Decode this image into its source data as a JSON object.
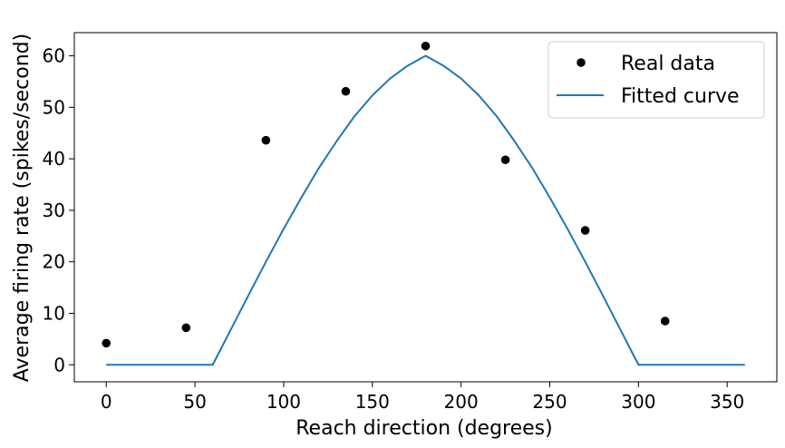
{
  "chart_data": {
    "type": "line",
    "xlabel": "Reach direction (degrees)",
    "ylabel": "Average firing rate (spikes/second)",
    "xlim": [
      -18,
      378
    ],
    "ylim": [
      -3.3,
      64.5
    ],
    "xticks": [
      0,
      50,
      100,
      150,
      200,
      250,
      300,
      350
    ],
    "yticks": [
      0,
      10,
      20,
      30,
      40,
      50,
      60
    ],
    "grid": false,
    "legend_position": "top-right",
    "colors": {
      "scatter": "#000000",
      "fit": "#1f77b4"
    },
    "series": [
      {
        "name": "Real data",
        "type": "scatter",
        "x": [
          0,
          45,
          90,
          135,
          180,
          225,
          270,
          315
        ],
        "y": [
          4.2,
          7.2,
          43.6,
          53.1,
          61.9,
          39.8,
          26.1,
          8.5
        ]
      },
      {
        "name": "Fitted curve",
        "type": "line",
        "x": [
          0,
          60,
          70,
          80,
          90,
          100,
          110,
          120,
          130,
          140,
          150,
          160,
          170,
          180,
          190,
          200,
          210,
          220,
          230,
          240,
          250,
          260,
          270,
          280,
          290,
          300,
          360
        ],
        "y": [
          0,
          0,
          6.7,
          13.4,
          20.0,
          26.4,
          32.5,
          38.3,
          43.5,
          48.3,
          52.3,
          55.6,
          58.1,
          60.0,
          58.1,
          55.6,
          52.3,
          48.3,
          43.5,
          38.3,
          32.5,
          26.4,
          20.0,
          13.4,
          6.7,
          0,
          0
        ]
      }
    ]
  }
}
